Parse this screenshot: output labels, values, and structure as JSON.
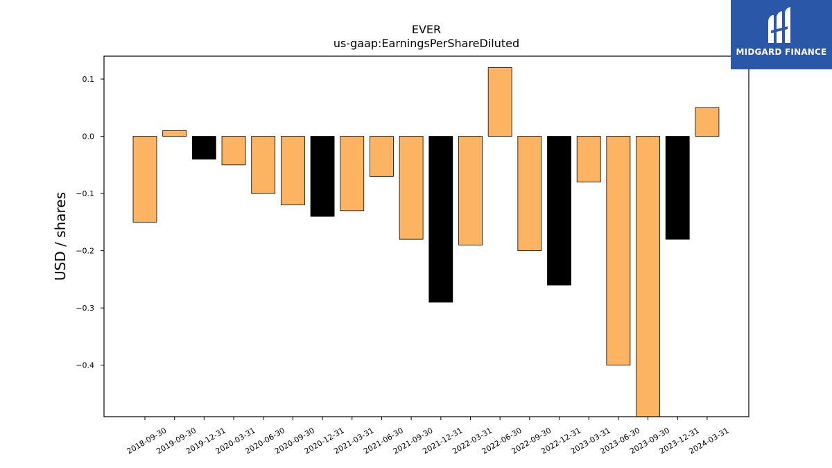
{
  "logo": {
    "text": "MIDGARD FINANCE",
    "color": "#2a57a8"
  },
  "chart_data": {
    "type": "bar",
    "title": "EVER",
    "subtitle": "us-gaap:EarningsPerShareDiluted",
    "xlabel": "",
    "ylabel": "USD / shares",
    "ylim": [
      -0.49,
      0.14
    ],
    "yticks": [
      0.1,
      0.0,
      -0.1,
      -0.2,
      -0.3,
      -0.4
    ],
    "ytick_labels": [
      "0.1",
      "0.0",
      "−0.1",
      "−0.2",
      "−0.3",
      "−0.4"
    ],
    "grid": false,
    "categories": [
      "2018-09-30",
      "2019-09-30",
      "2019-12-31",
      "2020-03-31",
      "2020-06-30",
      "2020-09-30",
      "2020-12-31",
      "2021-03-31",
      "2021-06-30",
      "2021-09-30",
      "2021-12-31",
      "2022-03-31",
      "2022-06-30",
      "2022-09-30",
      "2022-12-31",
      "2023-03-31",
      "2023-06-30",
      "2023-09-30",
      "2023-12-31",
      "2024-03-31"
    ],
    "values": [
      -0.15,
      0.01,
      -0.04,
      -0.05,
      -0.1,
      -0.12,
      -0.14,
      -0.13,
      -0.07,
      -0.18,
      -0.29,
      -0.19,
      0.12,
      -0.2,
      -0.26,
      -0.08,
      -0.4,
      -0.5,
      -0.18,
      0.05
    ],
    "colors": [
      "#fdb462",
      "#fdb462",
      "#000000",
      "#fdb462",
      "#fdb462",
      "#fdb462",
      "#000000",
      "#fdb462",
      "#fdb462",
      "#fdb462",
      "#000000",
      "#fdb462",
      "#fdb462",
      "#fdb462",
      "#000000",
      "#fdb462",
      "#fdb462",
      "#fdb462",
      "#000000",
      "#fdb462"
    ]
  }
}
